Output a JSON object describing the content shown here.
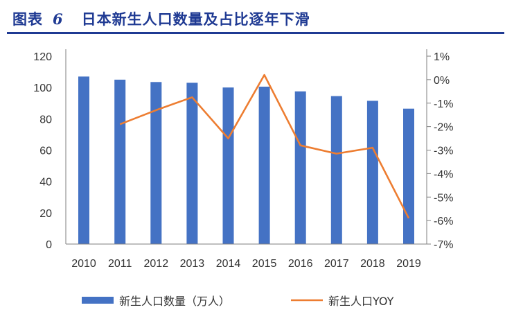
{
  "figure": {
    "label": "图表",
    "number": "6",
    "title": "日本新生人口数量及占比逐年下滑"
  },
  "colors": {
    "bar": "#4472c4",
    "line": "#ed7d31",
    "header": "#1f3a93",
    "axis": "#7f7f7f"
  },
  "chart_data": {
    "type": "bar",
    "categories": [
      "2010",
      "2011",
      "2012",
      "2013",
      "2014",
      "2015",
      "2016",
      "2017",
      "2018",
      "2019"
    ],
    "series": [
      {
        "name": "新生人口数量（万人）",
        "type": "bar",
        "axis": "left",
        "values": [
          107,
          105,
          103.5,
          103,
          100,
          100.5,
          97.5,
          94.5,
          91.5,
          86.5
        ]
      },
      {
        "name": "新生人口YOY",
        "type": "line",
        "axis": "right",
        "values": [
          null,
          -1.9,
          -1.3,
          -0.75,
          -2.5,
          0.2,
          -2.8,
          -3.15,
          -2.9,
          -5.9
        ]
      }
    ],
    "y_left": {
      "ticks": [
        "0",
        "20",
        "40",
        "60",
        "80",
        "100",
        "120"
      ],
      "ylim": [
        0,
        120
      ]
    },
    "y_right": {
      "ticks": [
        "1%",
        "0%",
        "-1%",
        "-2%",
        "-3%",
        "-4%",
        "-5%",
        "-6%",
        "-7%"
      ],
      "ylim": [
        -7,
        1
      ]
    },
    "legend_position": "bottom",
    "grid": false
  }
}
